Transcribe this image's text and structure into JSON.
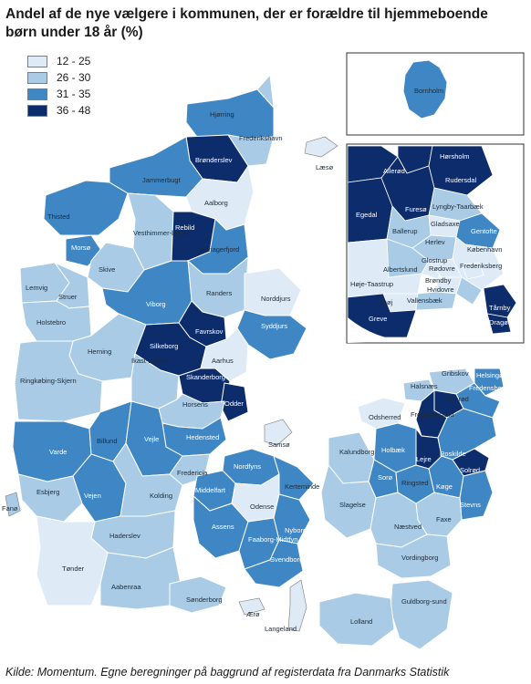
{
  "title": "Andel af de nye vælgere i kommunen, der er forældre til hjemmeboende børn under 18 år (%)",
  "legend": [
    {
      "label": "12 - 25",
      "color": "#deebf7"
    },
    {
      "label": "26 - 30",
      "color": "#a9cbe5"
    },
    {
      "label": "31 - 35",
      "color": "#3f86c4"
    },
    {
      "label": "36 - 48",
      "color": "#0d2c6b"
    }
  ],
  "source": "Kilde: Momentum. Egne beregninger på baggrund af registerdata fra Danmarks Statistik",
  "municipalities": [
    {
      "name": "Hjørring",
      "class": 2
    },
    {
      "name": "Frederikshavn",
      "class": 1
    },
    {
      "name": "Læsø",
      "class": 0
    },
    {
      "name": "Brønderslev",
      "class": 3
    },
    {
      "name": "Jammerbugt",
      "class": 2
    },
    {
      "name": "Aalborg",
      "class": 0
    },
    {
      "name": "Thisted",
      "class": 2
    },
    {
      "name": "Vesthimmer-lands",
      "class": 1
    },
    {
      "name": "Rebild",
      "class": 3
    },
    {
      "name": "Mariagerfjord",
      "class": 2
    },
    {
      "name": "Morsø",
      "class": 2
    },
    {
      "name": "Skive",
      "class": 1
    },
    {
      "name": "Randers",
      "class": 1
    },
    {
      "name": "Norddjurs",
      "class": 0
    },
    {
      "name": "Lemvig",
      "class": 1
    },
    {
      "name": "Struer",
      "class": 1
    },
    {
      "name": "Holstebro",
      "class": 1
    },
    {
      "name": "Viborg",
      "class": 2
    },
    {
      "name": "Favrskov",
      "class": 3
    },
    {
      "name": "Syddjurs",
      "class": 2
    },
    {
      "name": "Herning",
      "class": 1
    },
    {
      "name": "Silkeborg",
      "class": 3
    },
    {
      "name": "Aarhus",
      "class": 0
    },
    {
      "name": "Ikast-Brande",
      "class": 1
    },
    {
      "name": "Skanderborg",
      "class": 3
    },
    {
      "name": "Ringkøbing-Skjern",
      "class": 1
    },
    {
      "name": "Odder",
      "class": 3
    },
    {
      "name": "Horsens",
      "class": 1
    },
    {
      "name": "Samsø",
      "class": 0
    },
    {
      "name": "Hedensted",
      "class": 2
    },
    {
      "name": "Varde",
      "class": 2
    },
    {
      "name": "Billund",
      "class": 2
    },
    {
      "name": "Vejle",
      "class": 2
    },
    {
      "name": "Fredericia",
      "class": 1
    },
    {
      "name": "Esbjerg",
      "class": 1
    },
    {
      "name": "Kolding",
      "class": 1
    },
    {
      "name": "Vejen",
      "class": 2
    },
    {
      "name": "Fanø",
      "class": 1
    },
    {
      "name": "Haderslev",
      "class": 1
    },
    {
      "name": "Tønder",
      "class": 0
    },
    {
      "name": "Aabenraa",
      "class": 1
    },
    {
      "name": "Sønderborg",
      "class": 1
    },
    {
      "name": "Nordfyns",
      "class": 2
    },
    {
      "name": "Middelfart",
      "class": 2
    },
    {
      "name": "Kerteminde",
      "class": 2
    },
    {
      "name": "Odense",
      "class": 0
    },
    {
      "name": "Assens",
      "class": 2
    },
    {
      "name": "Nyborg",
      "class": 2
    },
    {
      "name": "Faaborg-Midtfyn",
      "class": 2
    },
    {
      "name": "Svendborg",
      "class": 2
    },
    {
      "name": "Ærø",
      "class": 0
    },
    {
      "name": "Langeland",
      "class": 0
    },
    {
      "name": "Gribskov",
      "class": 1
    },
    {
      "name": "Helsingør",
      "class": 2
    },
    {
      "name": "Halsnæs",
      "class": 1
    },
    {
      "name": "Hillerød",
      "class": 3
    },
    {
      "name": "Fredensborg",
      "class": 2
    },
    {
      "name": "Frederikssund",
      "class": 3
    },
    {
      "name": "Odsherred",
      "class": 0
    },
    {
      "name": "Holbæk",
      "class": 2
    },
    {
      "name": "Roskilde",
      "class": 2
    },
    {
      "name": "Lejre",
      "class": 3
    },
    {
      "name": "Kalundborg",
      "class": 1
    },
    {
      "name": "Sorø",
      "class": 2
    },
    {
      "name": "Ringsted",
      "class": 2
    },
    {
      "name": "Køge",
      "class": 2
    },
    {
      "name": "Solrød",
      "class": 3
    },
    {
      "name": "Stevns",
      "class": 2
    },
    {
      "name": "Slagelse",
      "class": 1
    },
    {
      "name": "Faxe",
      "class": 1
    },
    {
      "name": "Næstved",
      "class": 1
    },
    {
      "name": "Vordingborg",
      "class": 1
    },
    {
      "name": "Guldborg-sund",
      "class": 1
    },
    {
      "name": "Lolland",
      "class": 1
    },
    {
      "name": "Bornholm",
      "class": 2
    },
    {
      "name": "Hørsholm",
      "class": 3
    },
    {
      "name": "Allerød",
      "class": 3
    },
    {
      "name": "Rudersdal",
      "class": 3
    },
    {
      "name": "Egedal",
      "class": 3
    },
    {
      "name": "Furesø",
      "class": 3
    },
    {
      "name": "Lyngby-Taarbæk",
      "class": 1
    },
    {
      "name": "Gladsaxe",
      "class": 0
    },
    {
      "name": "Ballerup",
      "class": 1
    },
    {
      "name": "Herlev",
      "class": 1
    },
    {
      "name": "Gentofte",
      "class": 2
    },
    {
      "name": "København",
      "class": 0
    },
    {
      "name": "Glostrup",
      "class": 0
    },
    {
      "name": "Albertslund",
      "class": 1
    },
    {
      "name": "Rødovre",
      "class": 0
    },
    {
      "name": "Frederiksberg",
      "class": 0
    },
    {
      "name": "Brøndby",
      "class": 0
    },
    {
      "name": "Høje-Taastrup",
      "class": 0
    },
    {
      "name": "Hvidovre",
      "class": 1
    },
    {
      "name": "Ishøj",
      "class": 0
    },
    {
      "name": "Vallensbæk",
      "class": 1
    },
    {
      "name": "Greve",
      "class": 3
    },
    {
      "name": "Tårnby",
      "class": 3
    },
    {
      "name": "Dragør",
      "class": 3
    }
  ]
}
